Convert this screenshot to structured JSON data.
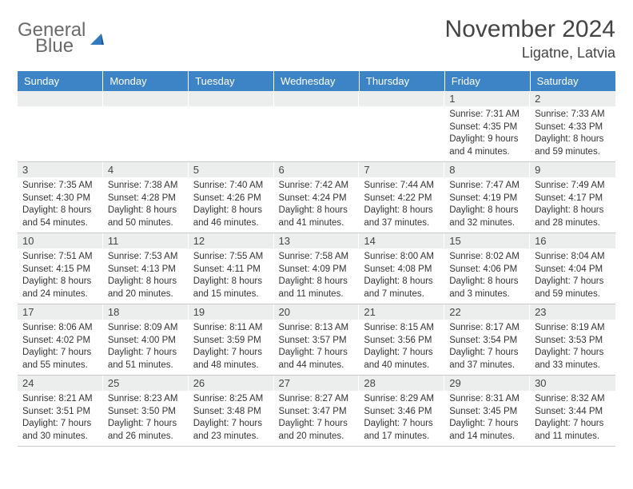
{
  "logo": {
    "line1": "General",
    "line2": "Blue"
  },
  "title": "November 2024",
  "location": "Ligatne, Latvia",
  "colors": {
    "header_bg": "#3d84c6",
    "daynum_bg": "#eceded",
    "logo_gray": "#6a6a6a",
    "logo_blue": "#2f7ac0"
  },
  "days": [
    "Sunday",
    "Monday",
    "Tuesday",
    "Wednesday",
    "Thursday",
    "Friday",
    "Saturday"
  ],
  "weeks": [
    [
      null,
      null,
      null,
      null,
      null,
      {
        "n": "1",
        "sr": "Sunrise: 7:31 AM",
        "ss": "Sunset: 4:35 PM",
        "dl1": "Daylight: 9 hours",
        "dl2": "and 4 minutes."
      },
      {
        "n": "2",
        "sr": "Sunrise: 7:33 AM",
        "ss": "Sunset: 4:33 PM",
        "dl1": "Daylight: 8 hours",
        "dl2": "and 59 minutes."
      }
    ],
    [
      {
        "n": "3",
        "sr": "Sunrise: 7:35 AM",
        "ss": "Sunset: 4:30 PM",
        "dl1": "Daylight: 8 hours",
        "dl2": "and 54 minutes."
      },
      {
        "n": "4",
        "sr": "Sunrise: 7:38 AM",
        "ss": "Sunset: 4:28 PM",
        "dl1": "Daylight: 8 hours",
        "dl2": "and 50 minutes."
      },
      {
        "n": "5",
        "sr": "Sunrise: 7:40 AM",
        "ss": "Sunset: 4:26 PM",
        "dl1": "Daylight: 8 hours",
        "dl2": "and 46 minutes."
      },
      {
        "n": "6",
        "sr": "Sunrise: 7:42 AM",
        "ss": "Sunset: 4:24 PM",
        "dl1": "Daylight: 8 hours",
        "dl2": "and 41 minutes."
      },
      {
        "n": "7",
        "sr": "Sunrise: 7:44 AM",
        "ss": "Sunset: 4:22 PM",
        "dl1": "Daylight: 8 hours",
        "dl2": "and 37 minutes."
      },
      {
        "n": "8",
        "sr": "Sunrise: 7:47 AM",
        "ss": "Sunset: 4:19 PM",
        "dl1": "Daylight: 8 hours",
        "dl2": "and 32 minutes."
      },
      {
        "n": "9",
        "sr": "Sunrise: 7:49 AM",
        "ss": "Sunset: 4:17 PM",
        "dl1": "Daylight: 8 hours",
        "dl2": "and 28 minutes."
      }
    ],
    [
      {
        "n": "10",
        "sr": "Sunrise: 7:51 AM",
        "ss": "Sunset: 4:15 PM",
        "dl1": "Daylight: 8 hours",
        "dl2": "and 24 minutes."
      },
      {
        "n": "11",
        "sr": "Sunrise: 7:53 AM",
        "ss": "Sunset: 4:13 PM",
        "dl1": "Daylight: 8 hours",
        "dl2": "and 20 minutes."
      },
      {
        "n": "12",
        "sr": "Sunrise: 7:55 AM",
        "ss": "Sunset: 4:11 PM",
        "dl1": "Daylight: 8 hours",
        "dl2": "and 15 minutes."
      },
      {
        "n": "13",
        "sr": "Sunrise: 7:58 AM",
        "ss": "Sunset: 4:09 PM",
        "dl1": "Daylight: 8 hours",
        "dl2": "and 11 minutes."
      },
      {
        "n": "14",
        "sr": "Sunrise: 8:00 AM",
        "ss": "Sunset: 4:08 PM",
        "dl1": "Daylight: 8 hours",
        "dl2": "and 7 minutes."
      },
      {
        "n": "15",
        "sr": "Sunrise: 8:02 AM",
        "ss": "Sunset: 4:06 PM",
        "dl1": "Daylight: 8 hours",
        "dl2": "and 3 minutes."
      },
      {
        "n": "16",
        "sr": "Sunrise: 8:04 AM",
        "ss": "Sunset: 4:04 PM",
        "dl1": "Daylight: 7 hours",
        "dl2": "and 59 minutes."
      }
    ],
    [
      {
        "n": "17",
        "sr": "Sunrise: 8:06 AM",
        "ss": "Sunset: 4:02 PM",
        "dl1": "Daylight: 7 hours",
        "dl2": "and 55 minutes."
      },
      {
        "n": "18",
        "sr": "Sunrise: 8:09 AM",
        "ss": "Sunset: 4:00 PM",
        "dl1": "Daylight: 7 hours",
        "dl2": "and 51 minutes."
      },
      {
        "n": "19",
        "sr": "Sunrise: 8:11 AM",
        "ss": "Sunset: 3:59 PM",
        "dl1": "Daylight: 7 hours",
        "dl2": "and 48 minutes."
      },
      {
        "n": "20",
        "sr": "Sunrise: 8:13 AM",
        "ss": "Sunset: 3:57 PM",
        "dl1": "Daylight: 7 hours",
        "dl2": "and 44 minutes."
      },
      {
        "n": "21",
        "sr": "Sunrise: 8:15 AM",
        "ss": "Sunset: 3:56 PM",
        "dl1": "Daylight: 7 hours",
        "dl2": "and 40 minutes."
      },
      {
        "n": "22",
        "sr": "Sunrise: 8:17 AM",
        "ss": "Sunset: 3:54 PM",
        "dl1": "Daylight: 7 hours",
        "dl2": "and 37 minutes."
      },
      {
        "n": "23",
        "sr": "Sunrise: 8:19 AM",
        "ss": "Sunset: 3:53 PM",
        "dl1": "Daylight: 7 hours",
        "dl2": "and 33 minutes."
      }
    ],
    [
      {
        "n": "24",
        "sr": "Sunrise: 8:21 AM",
        "ss": "Sunset: 3:51 PM",
        "dl1": "Daylight: 7 hours",
        "dl2": "and 30 minutes."
      },
      {
        "n": "25",
        "sr": "Sunrise: 8:23 AM",
        "ss": "Sunset: 3:50 PM",
        "dl1": "Daylight: 7 hours",
        "dl2": "and 26 minutes."
      },
      {
        "n": "26",
        "sr": "Sunrise: 8:25 AM",
        "ss": "Sunset: 3:48 PM",
        "dl1": "Daylight: 7 hours",
        "dl2": "and 23 minutes."
      },
      {
        "n": "27",
        "sr": "Sunrise: 8:27 AM",
        "ss": "Sunset: 3:47 PM",
        "dl1": "Daylight: 7 hours",
        "dl2": "and 20 minutes."
      },
      {
        "n": "28",
        "sr": "Sunrise: 8:29 AM",
        "ss": "Sunset: 3:46 PM",
        "dl1": "Daylight: 7 hours",
        "dl2": "and 17 minutes."
      },
      {
        "n": "29",
        "sr": "Sunrise: 8:31 AM",
        "ss": "Sunset: 3:45 PM",
        "dl1": "Daylight: 7 hours",
        "dl2": "and 14 minutes."
      },
      {
        "n": "30",
        "sr": "Sunrise: 8:32 AM",
        "ss": "Sunset: 3:44 PM",
        "dl1": "Daylight: 7 hours",
        "dl2": "and 11 minutes."
      }
    ]
  ]
}
